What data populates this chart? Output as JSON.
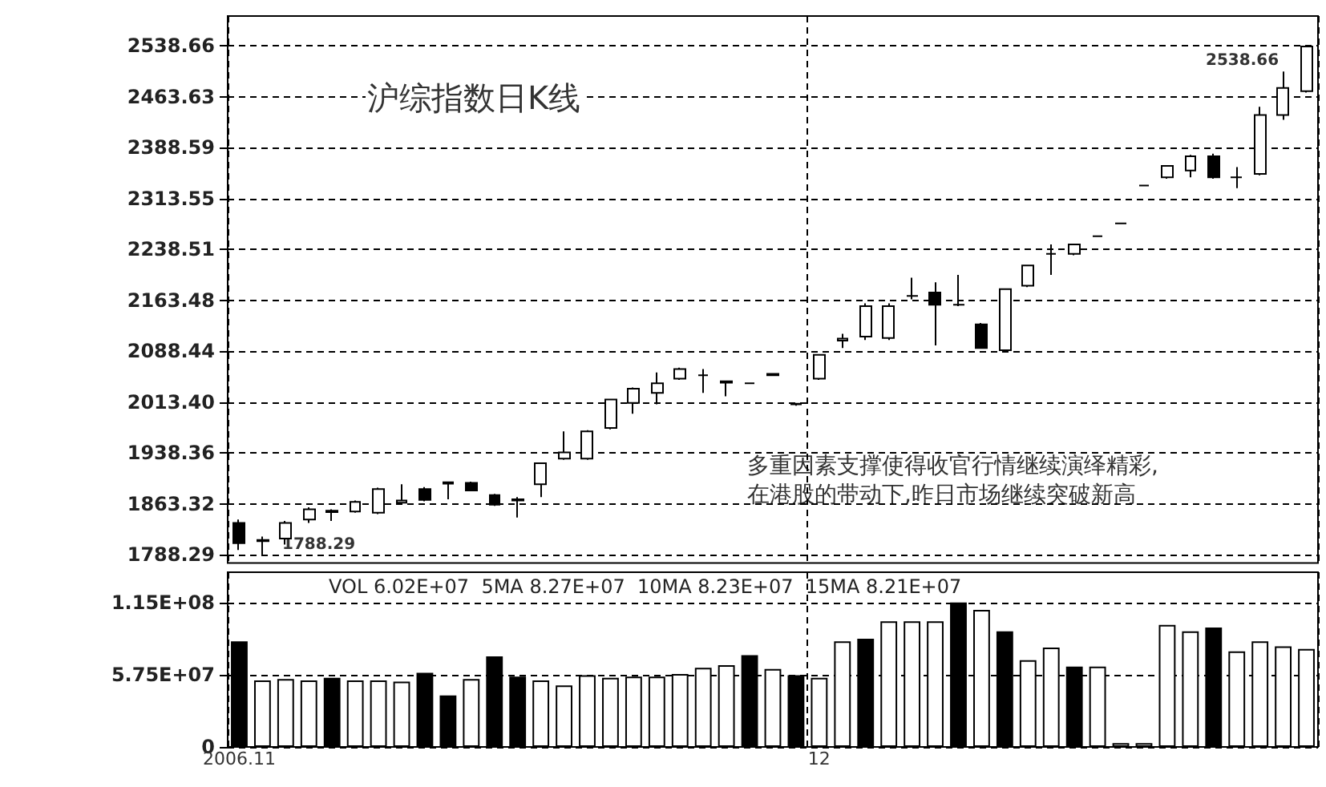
{
  "chart_data": [
    {
      "type": "candlestick",
      "title": "沪综指数日K线",
      "categories": [
        "2006.11",
        null,
        null,
        null,
        null,
        null,
        null,
        null,
        null,
        null,
        null,
        null,
        null,
        null,
        null,
        null,
        null,
        null,
        null,
        null,
        null,
        null,
        null,
        null,
        null,
        "12",
        null,
        null,
        null,
        null,
        null,
        null,
        null,
        null,
        null,
        null,
        null,
        null,
        null,
        null,
        null,
        null,
        null,
        null,
        null,
        null,
        null
      ],
      "ohlc": [
        [
          1835,
          1840,
          1795,
          1805
        ],
        [
          1808,
          1815,
          1788.29,
          1810
        ],
        [
          1812,
          1838,
          1803,
          1835
        ],
        [
          1840,
          1858,
          1835,
          1855
        ],
        [
          1851,
          1855,
          1838,
          1853
        ],
        [
          1852,
          1868,
          1850,
          1866
        ],
        [
          1850,
          1887,
          1848,
          1885
        ],
        [
          1865,
          1892,
          1862,
          1868
        ],
        [
          1885,
          1888,
          1867,
          1869
        ],
        [
          1893,
          1896,
          1870,
          1895
        ],
        [
          1894,
          1896,
          1882,
          1883
        ],
        [
          1876,
          1878,
          1860,
          1862
        ],
        [
          1868,
          1873,
          1843,
          1870
        ],
        [
          1892,
          1923,
          1873,
          1923
        ],
        [
          1930,
          1970,
          1928,
          1939
        ],
        [
          1930,
          1972,
          1928,
          1970
        ],
        [
          1975,
          2018,
          1973,
          2017
        ],
        [
          2012,
          2035,
          1996,
          2033
        ],
        [
          2027,
          2057,
          2010,
          2041
        ],
        [
          2048,
          2064,
          2046,
          2062
        ],
        [
          2053,
          2062,
          2027,
          2053
        ],
        [
          2042,
          2045,
          2022,
          2044
        ],
        [
          2041,
          2042,
          2040,
          2041
        ],
        [
          2053,
          2056,
          2052,
          2055
        ],
        [
          2010,
          2012,
          2008,
          2011
        ],
        [
          2048,
          2083,
          2046,
          2083
        ],
        [
          2104,
          2114,
          2093,
          2107
        ],
        [
          2110,
          2159,
          2105,
          2155
        ],
        [
          2108,
          2159,
          2105,
          2155
        ],
        [
          2170,
          2197,
          2165,
          2170
        ],
        [
          2175,
          2190,
          2097,
          2157
        ],
        [
          2157,
          2201,
          2155,
          2157
        ],
        [
          2128,
          2130,
          2093,
          2093
        ],
        [
          2090,
          2180,
          2088,
          2180
        ],
        [
          2185,
          2215,
          2183,
          2215
        ],
        [
          2232,
          2246,
          2201,
          2232
        ],
        [
          2232,
          2246,
          2230,
          2246
        ],
        [
          2258,
          2259,
          2257,
          2258
        ],
        [
          2277,
          2278,
          2276,
          2277
        ],
        [
          2333,
          2334,
          2332,
          2333
        ],
        [
          2345,
          2362,
          2343,
          2362
        ],
        [
          2355,
          2378,
          2345,
          2376
        ],
        [
          2376,
          2380,
          2343,
          2345
        ],
        [
          2345,
          2360,
          2329,
          2345
        ],
        [
          2350,
          2449,
          2348,
          2437
        ],
        [
          2437,
          2501,
          2430,
          2477
        ],
        [
          2472,
          2538.66,
          2470,
          2538
        ]
      ],
      "ylim": [
        1776,
        2583
      ],
      "yticks": [
        1788.29,
        1863.32,
        1938.36,
        {
          "value": 2013.4,
          "label": "2013.40"
        },
        2088.44,
        2163.48,
        2238.51,
        2313.55,
        2388.59,
        2463.63,
        2538.66
      ],
      "grid": true,
      "tick_labels": "y",
      "annotations": [
        "2538.66",
        "1788.29",
        "多重因素支撑使得收官行情继续演绎精彩,",
        "在港股的带动下,昨日市场继续突破新高"
      ]
    },
    {
      "type": "bar",
      "categories": [
        "2006.11",
        null,
        null,
        null,
        null,
        null,
        null,
        null,
        null,
        null,
        null,
        null,
        null,
        null,
        null,
        null,
        null,
        null,
        null,
        null,
        null,
        null,
        null,
        null,
        null,
        "12",
        null,
        null,
        null,
        null,
        null,
        null,
        null,
        null,
        null,
        null,
        null,
        null,
        null,
        null,
        null,
        null,
        null,
        null,
        null,
        null,
        null
      ],
      "values": [
        84000000,
        53000000,
        54000000,
        53000000,
        55000000,
        53000000,
        53000000,
        52000000,
        59000000,
        41000000,
        54000000,
        72000000,
        56000000,
        53000000,
        49000000,
        57000000,
        55000000,
        56000000,
        56000000,
        58000000,
        63000000,
        65000000,
        73000000,
        62000000,
        57000000,
        55000000,
        84000000,
        86000000,
        100000000,
        100000000,
        100000000,
        115000000,
        109000000,
        92000000,
        69000000,
        79000000,
        64000000,
        64000000,
        3000000,
        3000000,
        97000000,
        92000000,
        95000000,
        76000000,
        84000000,
        80000000,
        78000000
      ],
      "colors": [
        "#000000",
        "#ffffff",
        "#ffffff",
        "#ffffff",
        "#000000",
        "#ffffff",
        "#ffffff",
        "#ffffff",
        "#000000",
        "#000000",
        "#ffffff",
        "#000000",
        "#000000",
        "#ffffff",
        "#ffffff",
        "#ffffff",
        "#ffffff",
        "#ffffff",
        "#ffffff",
        "#ffffff",
        "#ffffff",
        "#ffffff",
        "#000000",
        "#ffffff",
        "#000000",
        "#ffffff",
        "#ffffff",
        "#000000",
        "#ffffff",
        "#ffffff",
        "#ffffff",
        "#000000",
        "#ffffff",
        "#000000",
        "#ffffff",
        "#ffffff",
        "#000000",
        "#ffffff",
        "#ffffff",
        "#ffffff",
        "#ffffff",
        "#ffffff",
        "#000000",
        "#ffffff",
        "#ffffff",
        "#ffffff",
        "#ffffff"
      ],
      "ylim": [
        0,
        139000000
      ],
      "yticks": [
        0,
        {
          "value": 57500000,
          "label": "5.75E+07"
        },
        {
          "value": 115000000,
          "label": "1.15E+08"
        }
      ],
      "grid": true,
      "annotations": [
        "VOL 6.02E+07  5MA 8.27E+07  10MA 8.23E+07  15MA 8.21E+07"
      ]
    }
  ]
}
